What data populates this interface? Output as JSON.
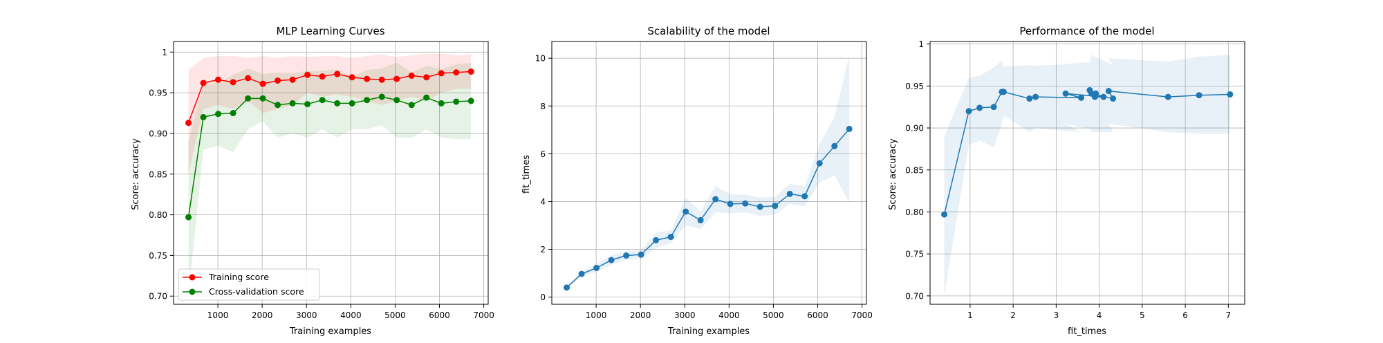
{
  "chart_data": [
    {
      "type": "line",
      "title": "MLP Learning Curves",
      "xlabel": "Training examples",
      "ylabel": "Score: accuracy",
      "xlim": [
        0,
        7100
      ],
      "ylim": [
        0.69,
        1.013
      ],
      "xticks": [
        1000,
        2000,
        3000,
        4000,
        5000,
        6000,
        7000
      ],
      "yticks": [
        0.7,
        0.75,
        0.8,
        0.85,
        0.9,
        0.95,
        1.0
      ],
      "grid": true,
      "legend_position": "lower-right",
      "x": [
        336,
        672,
        1007,
        1343,
        1679,
        2014,
        2350,
        2686,
        3021,
        3357,
        3693,
        4028,
        4364,
        4700,
        5035,
        5371,
        5706,
        6042,
        6378,
        6713
      ],
      "series": [
        {
          "name": "Training score",
          "color": "#ff0000",
          "values": [
            0.913,
            0.962,
            0.966,
            0.963,
            0.968,
            0.961,
            0.965,
            0.966,
            0.972,
            0.97,
            0.973,
            0.969,
            0.967,
            0.966,
            0.967,
            0.971,
            0.969,
            0.974,
            0.975,
            0.976
          ],
          "band_lower": [
            0.85,
            0.93,
            0.935,
            0.93,
            0.94,
            0.925,
            0.93,
            0.935,
            0.95,
            0.945,
            0.948,
            0.945,
            0.94,
            0.935,
            0.94,
            0.945,
            0.94,
            0.95,
            0.955,
            0.955
          ],
          "band_upper": [
            0.978,
            0.993,
            0.995,
            0.995,
            0.993,
            0.995,
            0.993,
            0.995,
            0.994,
            0.995,
            0.995,
            0.993,
            0.995,
            0.997,
            0.994,
            0.996,
            0.998,
            0.998,
            0.996,
            0.997
          ]
        },
        {
          "name": "Cross-validation score",
          "color": "#008000",
          "values": [
            0.797,
            0.92,
            0.924,
            0.925,
            0.943,
            0.943,
            0.935,
            0.937,
            0.936,
            0.941,
            0.937,
            0.937,
            0.941,
            0.945,
            0.941,
            0.935,
            0.944,
            0.937,
            0.939,
            0.94
          ],
          "band_lower": [
            0.7,
            0.88,
            0.885,
            0.877,
            0.905,
            0.915,
            0.895,
            0.9,
            0.895,
            0.905,
            0.895,
            0.905,
            0.905,
            0.91,
            0.895,
            0.895,
            0.905,
            0.895,
            0.893,
            0.893
          ],
          "band_upper": [
            0.89,
            0.96,
            0.962,
            0.972,
            0.98,
            0.973,
            0.975,
            0.974,
            0.977,
            0.977,
            0.979,
            0.969,
            0.978,
            0.98,
            0.987,
            0.975,
            0.983,
            0.979,
            0.985,
            0.987
          ]
        }
      ]
    },
    {
      "type": "line",
      "title": "Scalability of the model",
      "xlabel": "Training examples",
      "ylabel": "fit_times",
      "xlim": [
        0,
        7100
      ],
      "ylim": [
        -0.3,
        10.7
      ],
      "xticks": [
        1000,
        2000,
        3000,
        4000,
        5000,
        6000,
        7000
      ],
      "yticks": [
        0,
        2,
        4,
        6,
        8,
        10
      ],
      "grid": true,
      "x": [
        336,
        672,
        1007,
        1343,
        1679,
        2014,
        2350,
        2686,
        3021,
        3357,
        3693,
        4028,
        4364,
        4700,
        5035,
        5371,
        5706,
        6042,
        6378,
        6713
      ],
      "series": [
        {
          "color": "#1f77b4",
          "values": [
            0.4,
            0.97,
            1.22,
            1.55,
            1.74,
            1.78,
            2.38,
            2.52,
            3.58,
            3.22,
            4.1,
            3.9,
            3.92,
            3.78,
            3.82,
            4.32,
            4.22,
            5.6,
            6.32,
            7.04
          ],
          "band_lower": [
            0.35,
            0.88,
            1.05,
            1.35,
            1.55,
            1.6,
            2.05,
            2.25,
            3.0,
            2.85,
            3.55,
            3.5,
            3.55,
            3.4,
            3.45,
            3.9,
            3.8,
            4.8,
            5.1,
            3.95
          ],
          "band_upper": [
            0.45,
            1.06,
            1.39,
            1.75,
            1.93,
            1.96,
            2.71,
            2.79,
            4.16,
            3.59,
            4.65,
            4.3,
            4.29,
            4.16,
            4.19,
            4.74,
            4.64,
            6.4,
            7.54,
            10.13
          ]
        }
      ]
    },
    {
      "type": "line",
      "title": "Performance of the model",
      "xlabel": "fit_times",
      "ylabel": "Score: accuracy",
      "xlim": [
        0.07,
        7.38
      ],
      "ylim": [
        0.69,
        1.003
      ],
      "xticks": [
        1,
        2,
        3,
        4,
        5,
        6,
        7
      ],
      "yticks": [
        0.7,
        0.75,
        0.8,
        0.85,
        0.9,
        0.95,
        1.0
      ],
      "grid": true,
      "x": [
        0.4,
        0.97,
        1.22,
        1.55,
        1.74,
        1.78,
        2.38,
        2.52,
        3.58,
        3.22,
        4.1,
        3.9,
        3.92,
        3.78,
        3.82,
        4.32,
        4.22,
        5.6,
        6.32,
        7.04
      ],
      "series": [
        {
          "color": "#1f77b4",
          "values": [
            0.797,
            0.92,
            0.924,
            0.925,
            0.943,
            0.943,
            0.935,
            0.937,
            0.936,
            0.941,
            0.937,
            0.937,
            0.941,
            0.945,
            0.941,
            0.935,
            0.944,
            0.937,
            0.939,
            0.94
          ],
          "band_lower": [
            0.7,
            0.88,
            0.885,
            0.877,
            0.905,
            0.915,
            0.895,
            0.9,
            0.895,
            0.905,
            0.895,
            0.905,
            0.905,
            0.91,
            0.895,
            0.895,
            0.905,
            0.895,
            0.893,
            0.893
          ],
          "band_upper": [
            0.89,
            0.96,
            0.962,
            0.972,
            0.98,
            0.973,
            0.975,
            0.974,
            0.977,
            0.977,
            0.979,
            0.969,
            0.978,
            0.98,
            0.987,
            0.975,
            0.983,
            0.979,
            0.985,
            0.987
          ]
        }
      ]
    }
  ]
}
